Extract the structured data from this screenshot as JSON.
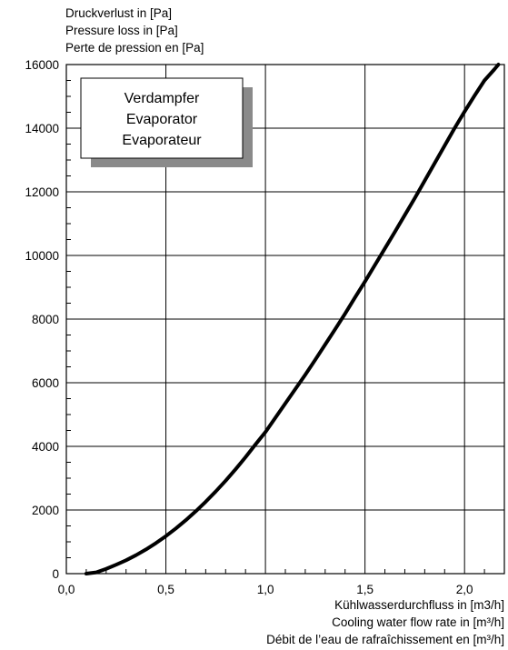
{
  "chart_data": {
    "type": "line",
    "ylabel_lines": [
      "Druckverlust in [Pa]",
      "Pressure loss in [Pa]",
      "Perte de pression en [Pa]"
    ],
    "xlabel_lines": [
      "Kühlwasserdurchfluss in [m3/h]",
      "Cooling water flow rate in [m³/h]",
      "Débit de l’eau de rafraîchissement en [m³/h]"
    ],
    "legend_lines": [
      "Verdampfer",
      "Evaporator",
      "Evaporateur"
    ],
    "xlim": [
      0,
      2.2
    ],
    "ylim": [
      0,
      16000
    ],
    "x_ticks": [
      0,
      0.5,
      1.0,
      1.5,
      2.0
    ],
    "x_tick_labels": [
      "0,0",
      "0,5",
      "1,0",
      "1,5",
      "2,0"
    ],
    "y_ticks": [
      0,
      2000,
      4000,
      6000,
      8000,
      10000,
      12000,
      14000,
      16000
    ],
    "y_tick_labels": [
      "0",
      "2000",
      "4000",
      "6000",
      "8000",
      "10000",
      "12000",
      "14000",
      "16000"
    ],
    "grid": true,
    "series": [
      {
        "x": [
          0.1,
          0.15,
          0.2,
          0.25,
          0.3,
          0.35,
          0.4,
          0.45,
          0.5,
          0.55,
          0.6,
          0.65,
          0.7,
          0.75,
          0.8,
          0.85,
          0.9,
          0.95,
          1.0,
          1.05,
          1.1,
          1.15,
          1.2,
          1.25,
          1.3,
          1.35,
          1.4,
          1.45,
          1.5,
          1.55,
          1.6,
          1.65,
          1.7,
          1.75,
          1.8,
          1.85,
          1.9,
          1.95,
          2.0,
          2.05,
          2.1,
          2.15,
          2.17
        ],
        "y": [
          0,
          40,
          150,
          280,
          420,
          580,
          760,
          960,
          1180,
          1420,
          1680,
          1960,
          2260,
          2580,
          2920,
          3280,
          3660,
          4060,
          4450,
          4900,
          5350,
          5800,
          6250,
          6720,
          7200,
          7680,
          8170,
          8680,
          9180,
          9700,
          10220,
          10740,
          11270,
          11800,
          12350,
          12900,
          13450,
          14000,
          14520,
          15020,
          15500,
          15850,
          16000
        ],
        "color": "#000000"
      }
    ]
  }
}
